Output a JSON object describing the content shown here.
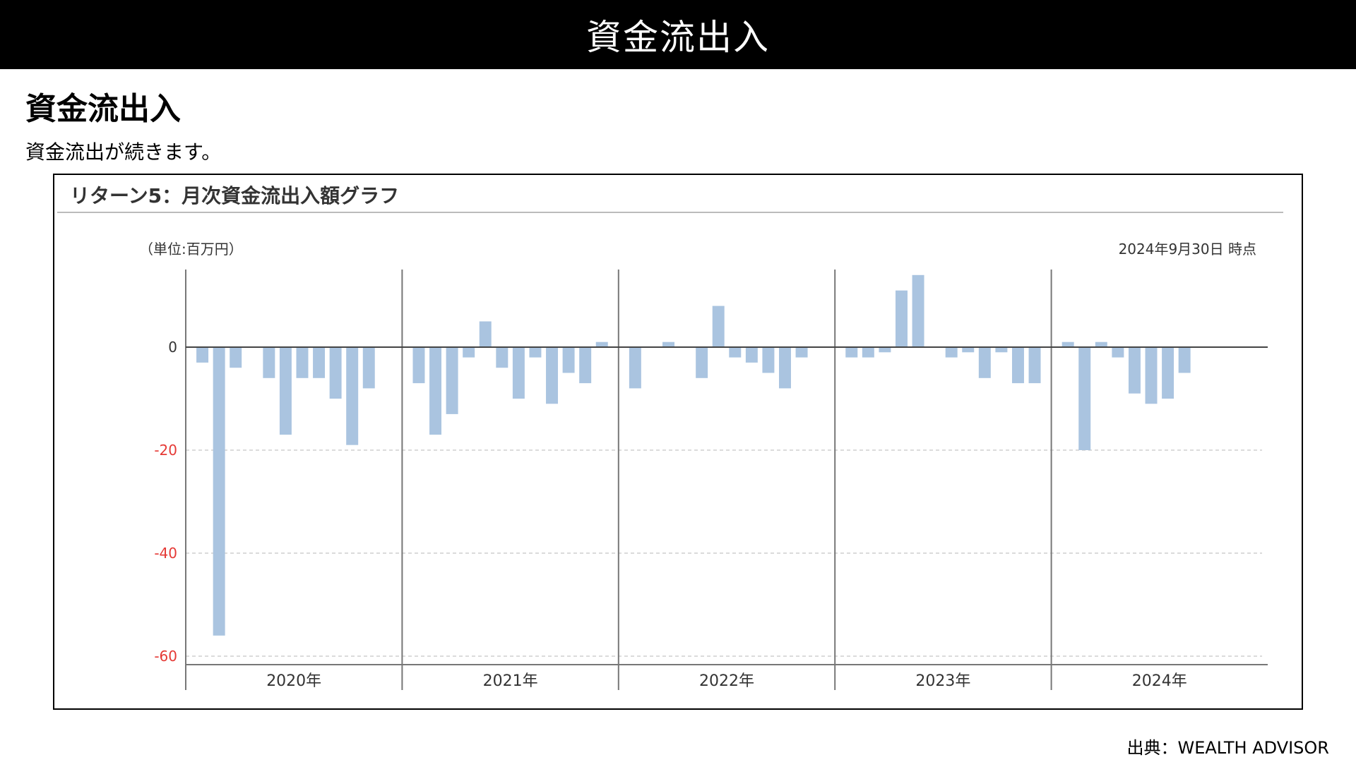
{
  "header": {
    "title": "資金流出入"
  },
  "section": {
    "heading": "資金流出入",
    "description": "資金流出が続きます。"
  },
  "chart_card": {
    "title": "リターン5：月次資金流出入額グラフ",
    "unit": "（単位:百万円）",
    "as_of": "2024年9月30日 時点"
  },
  "source": "出典：WEALTH ADVISOR",
  "chart_data": {
    "type": "bar",
    "title": "リターン5：月次資金流出入額グラフ",
    "ylabel": "（単位:百万円）",
    "xlabel": "",
    "ylim": [
      -61,
      15
    ],
    "yticks": [
      {
        "value": 0,
        "label": "0"
      },
      {
        "value": -20,
        "label": "-20"
      },
      {
        "value": -40,
        "label": "-40"
      },
      {
        "value": -60,
        "label": "-60"
      }
    ],
    "grid": "dashed horizontal at negative ticks",
    "bar_color": "#aac4e0",
    "negative_tick_color": "#e53935",
    "tick_color": "#333333",
    "years": [
      "2020年",
      "2021年",
      "2022年",
      "2023年",
      "2024年"
    ],
    "months_per_year": 12,
    "values": [
      -3,
      -56,
      -4,
      0,
      -6,
      -17,
      -6,
      -6,
      -10,
      -19,
      -8,
      0,
      -7,
      -17,
      -13,
      -2,
      5,
      -4,
      -10,
      -2,
      -11,
      -5,
      -7,
      1,
      -8,
      0,
      1,
      0,
      -6,
      8,
      -2,
      -3,
      -5,
      -8,
      -2,
      0,
      -2,
      -2,
      -1,
      11,
      14,
      0,
      -2,
      -1,
      -6,
      -1,
      -7,
      -7,
      1,
      -20,
      1,
      -2,
      -9,
      -11,
      -10,
      -5,
      null,
      null,
      null,
      null
    ]
  }
}
